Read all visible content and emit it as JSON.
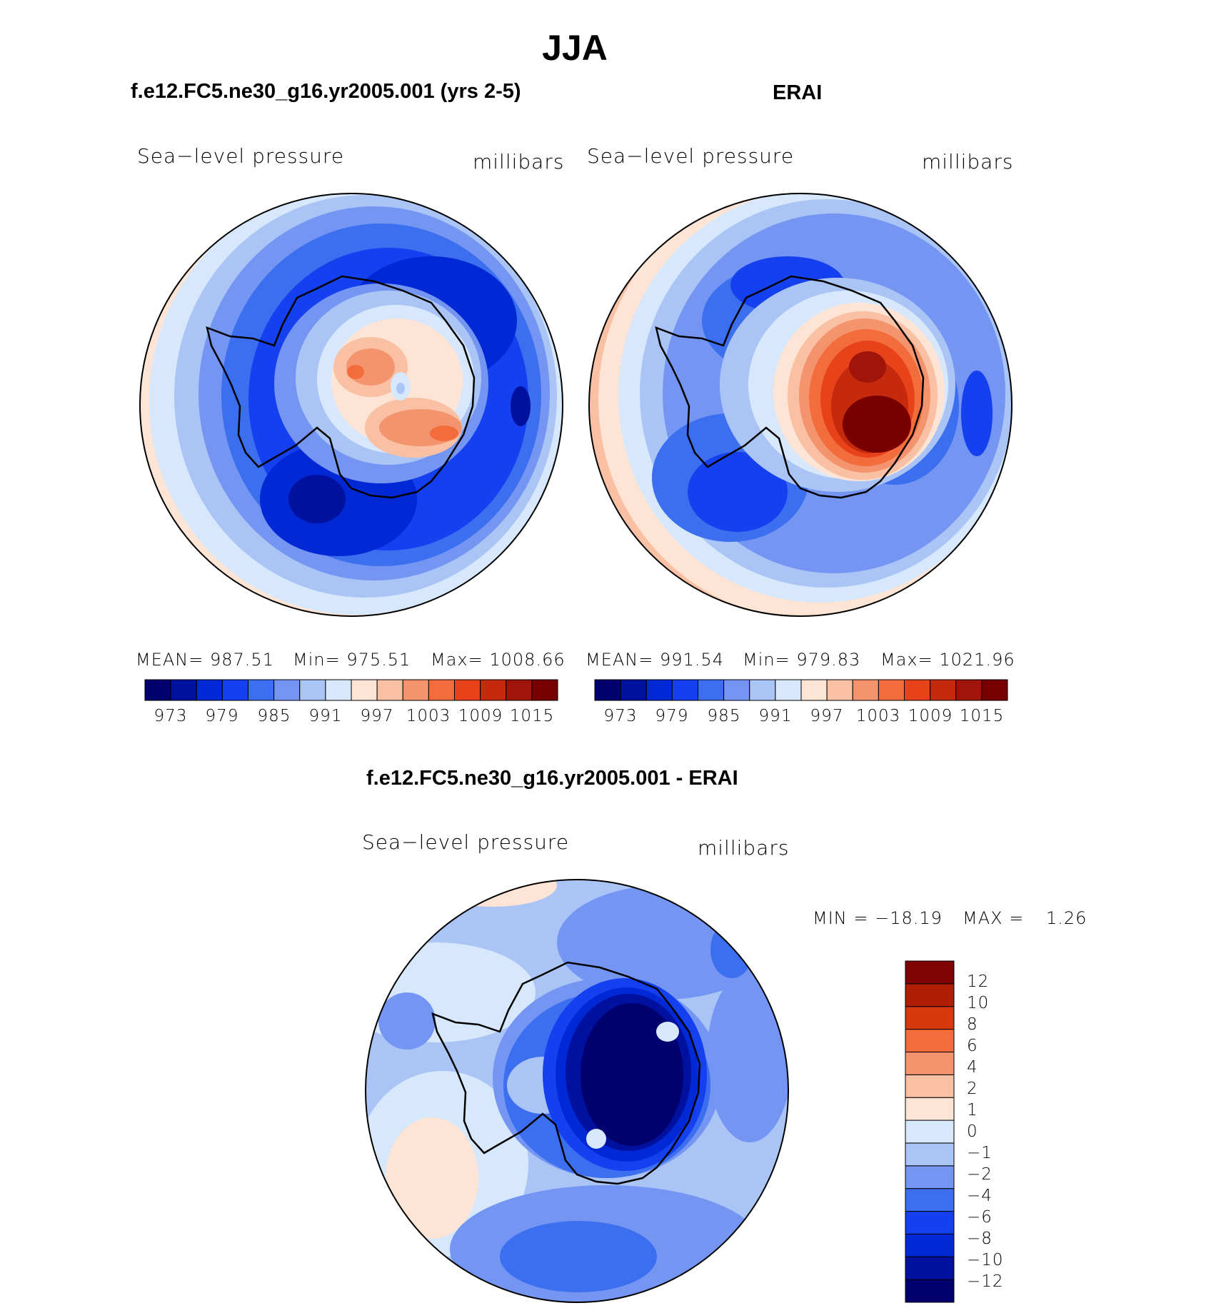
{
  "figure": {
    "title": "JJA"
  },
  "colors": {
    "levels14": [
      "#00006e",
      "#0011a0",
      "#0028d4",
      "#1440f0",
      "#3c6ef0",
      "#7496f2",
      "#aac4f6",
      "#d8e8fc",
      "#fde4d4",
      "#f9c0a4",
      "#f4946e",
      "#f36c3c",
      "#e8421a",
      "#c52a0c",
      "#a0140a",
      "#780000"
    ],
    "diff": [
      "#00006e",
      "#0011a0",
      "#0028d4",
      "#1440f0",
      "#3c6ef0",
      "#7496f2",
      "#aac4f6",
      "#d8e8fc",
      "#fde4d4",
      "#f9c0a4",
      "#f4946e",
      "#f36c3c",
      "#d8380e",
      "#b01e06",
      "#800404"
    ]
  },
  "panels": {
    "left": {
      "title": "f.e12.FC5.ne30_g16.yr2005.001 (yrs 2-5)",
      "variable": "Sea−level pressure",
      "units": "millibars",
      "stats": {
        "mean": "MEAN=  987.51",
        "min": "Min=  975.51",
        "max": "Max=  1008.66"
      },
      "colorbar_labels": [
        "973",
        "979",
        "985",
        "991",
        "997",
        "1003",
        "1009",
        "1015"
      ]
    },
    "right": {
      "title": "ERAI",
      "variable": "Sea−level pressure",
      "units": "millibars",
      "stats": {
        "mean": "MEAN=  991.54",
        "min": "Min=  979.83",
        "max": "Max=  1021.96"
      },
      "colorbar_labels": [
        "973",
        "979",
        "985",
        "991",
        "997",
        "1003",
        "1009",
        "1015"
      ]
    },
    "diff": {
      "title": "f.e12.FC5.ne30_g16.yr2005.001 - ERAI",
      "variable": "Sea−level pressure",
      "units": "millibars",
      "stats": {
        "min": "MIN  =  −18.19",
        "max": "MAX  =",
        "max_value": "1.26"
      },
      "colorbar_labels": [
        "12",
        "10",
        "8",
        "6",
        "4",
        "2",
        "1",
        "0",
        "−1",
        "−2",
        "−4",
        "−6",
        "−8",
        "−10",
        "−12"
      ]
    }
  },
  "chart_data": [
    {
      "type": "heatmap",
      "title": "f.e12.FC5.ne30_g16.yr2005.001 (yrs 2-5)",
      "projection": "south-polar stereographic",
      "variable": "Sea-level pressure",
      "units": "millibars",
      "mean": 987.51,
      "min": 975.51,
      "max": 1008.66,
      "contour_levels": [
        970,
        973,
        976,
        979,
        982,
        985,
        988,
        991,
        994,
        997,
        1000,
        1003,
        1006,
        1009,
        1012,
        1015,
        1018
      ],
      "colorbar_ticks": [
        973,
        979,
        985,
        991,
        997,
        1003,
        1009,
        1015
      ]
    },
    {
      "type": "heatmap",
      "title": "ERAI",
      "projection": "south-polar stereographic",
      "variable": "Sea-level pressure",
      "units": "millibars",
      "mean": 991.54,
      "min": 979.83,
      "max": 1021.96,
      "contour_levels": [
        970,
        973,
        976,
        979,
        982,
        985,
        988,
        991,
        994,
        997,
        1000,
        1003,
        1006,
        1009,
        1012,
        1015,
        1018
      ],
      "colorbar_ticks": [
        973,
        979,
        985,
        991,
        997,
        1003,
        1009,
        1015
      ]
    },
    {
      "type": "heatmap",
      "title": "f.e12.FC5.ne30_g16.yr2005.001 - ERAI",
      "projection": "south-polar stereographic",
      "variable": "Sea-level pressure",
      "units": "millibars",
      "min": -18.19,
      "max": 1.26,
      "contour_levels": [
        -12,
        -10,
        -8,
        -6,
        -4,
        -2,
        -1,
        0,
        1,
        2,
        4,
        6,
        8,
        10,
        12
      ],
      "colorbar_ticks": [
        12,
        10,
        8,
        6,
        4,
        2,
        1,
        0,
        -1,
        -2,
        -4,
        -6,
        -8,
        -10,
        -12
      ]
    }
  ]
}
